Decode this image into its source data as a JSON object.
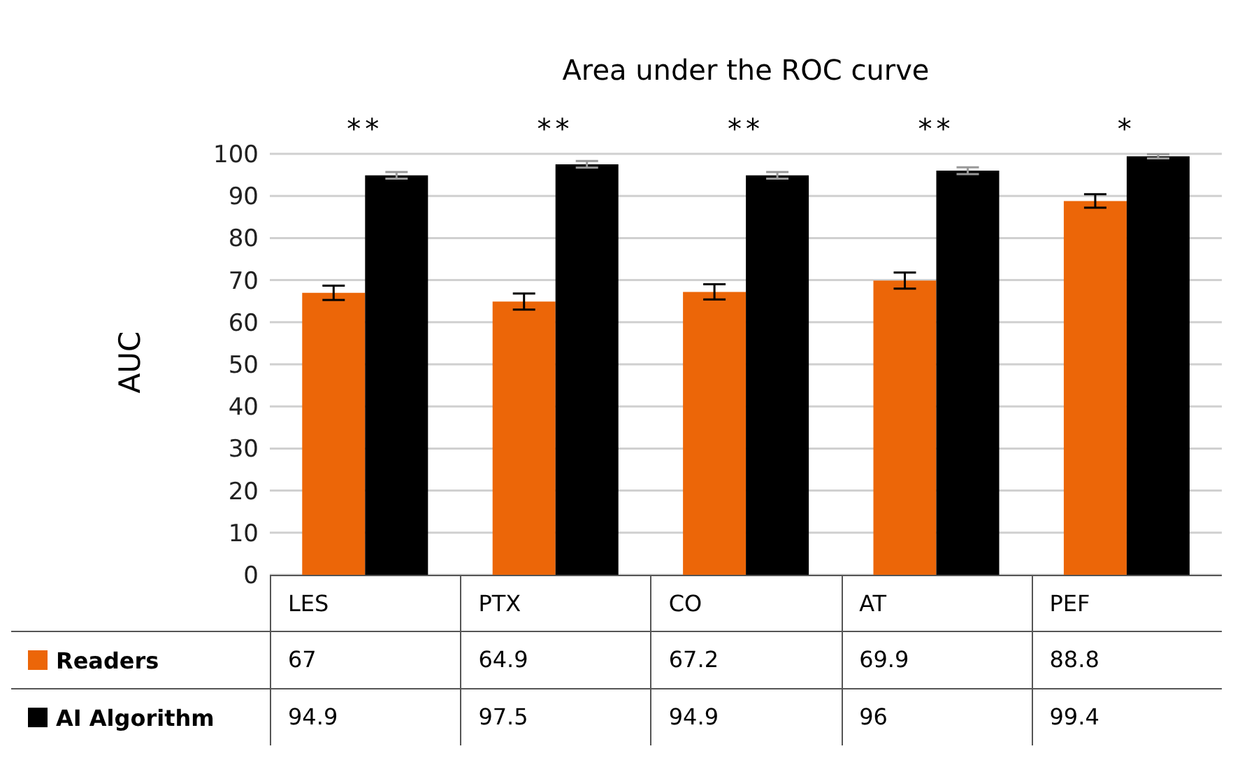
{
  "chart_data": {
    "type": "bar",
    "title": "Area under the ROC curve",
    "ylabel": "AUC",
    "categories": [
      "LES",
      "PTX",
      "CO",
      "AT",
      "PEF"
    ],
    "series": [
      {
        "name": "Readers",
        "color": "#ec6608",
        "values": [
          67,
          64.9,
          67.2,
          69.9,
          88.8
        ],
        "errors": [
          1.7,
          1.9,
          1.8,
          1.9,
          1.6
        ]
      },
      {
        "name": "AI Algorithm",
        "color": "#000000",
        "values": [
          94.9,
          97.5,
          94.9,
          96,
          99.4
        ],
        "errors": [
          0.8,
          0.8,
          0.8,
          0.8,
          0.5
        ]
      }
    ],
    "ylim": [
      0,
      100
    ],
    "yticks": [
      0,
      10,
      20,
      30,
      40,
      50,
      60,
      70,
      80,
      90,
      100
    ],
    "grid": "y",
    "legend": "bottom",
    "data_labels": true,
    "annotations": [
      "**",
      "**",
      "**",
      "**",
      "*"
    ]
  }
}
